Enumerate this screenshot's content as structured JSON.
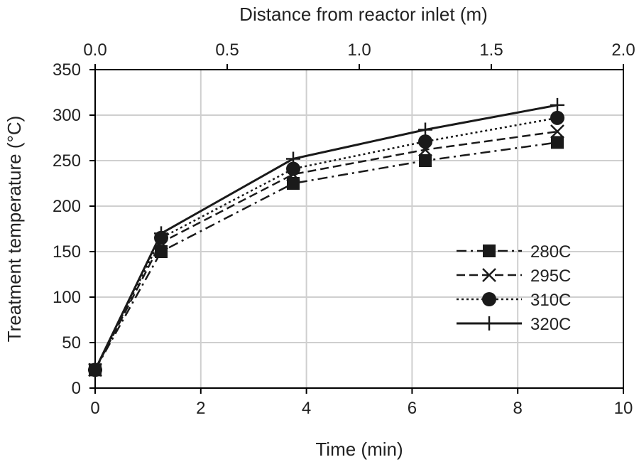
{
  "chart_data": {
    "type": "line",
    "title": "",
    "xlabel": "Time (min)",
    "ylabel": "Treatment temperature (°C)",
    "x2label": "Distance from reactor inlet (m)",
    "xlim": [
      0,
      10
    ],
    "ylim": [
      0,
      350
    ],
    "x2lim": [
      0,
      2
    ],
    "x_ticks": [
      "0",
      "2",
      "4",
      "6",
      "8",
      "10"
    ],
    "y_ticks": [
      "0",
      "50",
      "100",
      "150",
      "200",
      "250",
      "300",
      "350"
    ],
    "x2_ticks": [
      "0.0",
      "0.5",
      "1.0",
      "1.5",
      "2.0"
    ],
    "grid": true,
    "legend_position": "right",
    "x": [
      0,
      1.25,
      3.75,
      6.25,
      8.75
    ],
    "series": [
      {
        "name": "280C",
        "values": [
          20,
          150,
          225,
          250,
          270
        ],
        "line": "dashdot",
        "marker": "square"
      },
      {
        "name": "295C",
        "values": [
          20,
          160,
          235,
          262,
          282
        ],
        "line": "dashed",
        "marker": "x"
      },
      {
        "name": "310C",
        "values": [
          20,
          165,
          241,
          271,
          297
        ],
        "line": "dotted",
        "marker": "circle"
      },
      {
        "name": "320C",
        "values": [
          20,
          170,
          252,
          284,
          311
        ],
        "line": "solid",
        "marker": "plus"
      }
    ]
  }
}
